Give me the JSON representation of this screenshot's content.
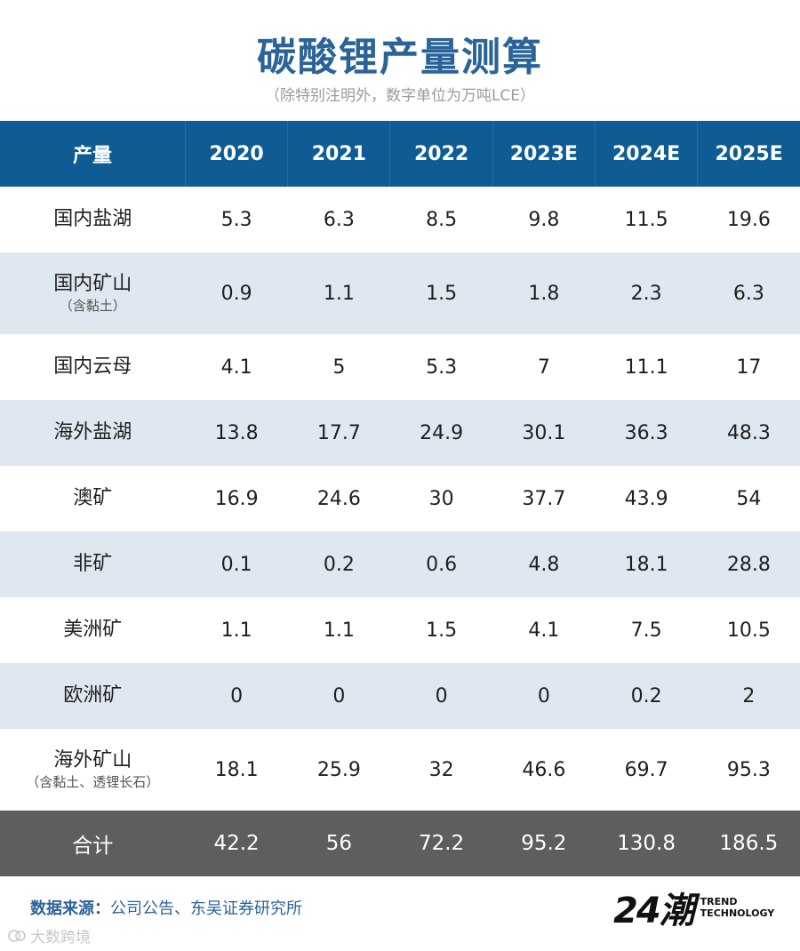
{
  "title": "碳酸锂产量测算",
  "subtitle": "（除特别注明外，数字单位为万吨LCE）",
  "source_label": "数据来源：",
  "source_text": "公司公告、东吴证券研究所",
  "logo": {
    "mark": "24潮",
    "line1": "TREND",
    "line2": "TECHNOLOGY"
  },
  "watermark": "大数跨境",
  "colors": {
    "header": "#0f5c94",
    "stripe": "#dfe7f0",
    "total": "#5e5e5e",
    "title": "#2a6397"
  },
  "chart_data": {
    "type": "table",
    "title": "碳酸锂产量测算",
    "header": [
      "产量",
      "2020",
      "2021",
      "2022",
      "2023E",
      "2024E",
      "2025E"
    ],
    "rows": [
      {
        "name": "国内盐湖",
        "sub": "",
        "values": [
          "5.3",
          "6.3",
          "8.5",
          "9.8",
          "11.5",
          "19.6"
        ]
      },
      {
        "name": "国内矿山",
        "sub": "（含黏土）",
        "values": [
          "0.9",
          "1.1",
          "1.5",
          "1.8",
          "2.3",
          "6.3"
        ]
      },
      {
        "name": "国内云母",
        "sub": "",
        "values": [
          "4.1",
          "5",
          "5.3",
          "7",
          "11.1",
          "17"
        ]
      },
      {
        "name": "海外盐湖",
        "sub": "",
        "values": [
          "13.8",
          "17.7",
          "24.9",
          "30.1",
          "36.3",
          "48.3"
        ]
      },
      {
        "name": "澳矿",
        "sub": "",
        "values": [
          "16.9",
          "24.6",
          "30",
          "37.7",
          "43.9",
          "54"
        ]
      },
      {
        "name": "非矿",
        "sub": "",
        "values": [
          "0.1",
          "0.2",
          "0.6",
          "4.8",
          "18.1",
          "28.8"
        ]
      },
      {
        "name": "美洲矿",
        "sub": "",
        "values": [
          "1.1",
          "1.1",
          "1.5",
          "4.1",
          "7.5",
          "10.5"
        ]
      },
      {
        "name": "欧洲矿",
        "sub": "",
        "values": [
          "0",
          "0",
          "0",
          "0",
          "0.2",
          "2"
        ]
      },
      {
        "name": "海外矿山",
        "sub": "（含黏土、透锂长石）",
        "values": [
          "18.1",
          "25.9",
          "32",
          "46.6",
          "69.7",
          "95.3"
        ]
      }
    ],
    "total": {
      "name": "合计",
      "values": [
        "42.2",
        "56",
        "72.2",
        "95.2",
        "130.8",
        "186.5"
      ]
    }
  }
}
